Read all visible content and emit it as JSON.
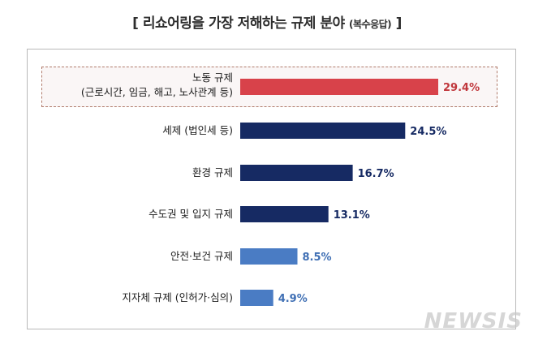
{
  "title": {
    "open": "[",
    "main": "리쇼어링을 가장 저해하는 규제 분야",
    "sub": "(복수응답)",
    "close": "]"
  },
  "watermark": "NEWSIS",
  "colors": {
    "highlight_bar": "#d8424a",
    "highlight_label": "#c0373c",
    "dark_bar": "#162a63",
    "dark_label": "#162a63",
    "light_bar": "#4a7cc4",
    "light_label": "#3f6fb4"
  },
  "chart_data": {
    "type": "bar",
    "orientation": "horizontal",
    "unit": "%",
    "categories": [
      [
        "노동 규제",
        "(근로시간, 임금, 해고, 노사관계 등)"
      ],
      [
        "세제 (법인세 등)"
      ],
      [
        "환경 규제"
      ],
      [
        "수도권 및 입지 규제"
      ],
      [
        "안전·보건 규제"
      ],
      [
        "지자체 규제 (인허가·심의)"
      ]
    ],
    "values": [
      29.4,
      24.5,
      16.7,
      13.1,
      8.5,
      4.9
    ],
    "value_labels": [
      "29.4%",
      "24.5%",
      "16.7%",
      "13.1%",
      "8.5%",
      "4.9%"
    ],
    "bar_color_keys": [
      "highlight",
      "dark",
      "dark",
      "dark",
      "light",
      "light"
    ],
    "xlim": [
      0,
      29.4
    ],
    "grid": false,
    "legend": "none"
  }
}
